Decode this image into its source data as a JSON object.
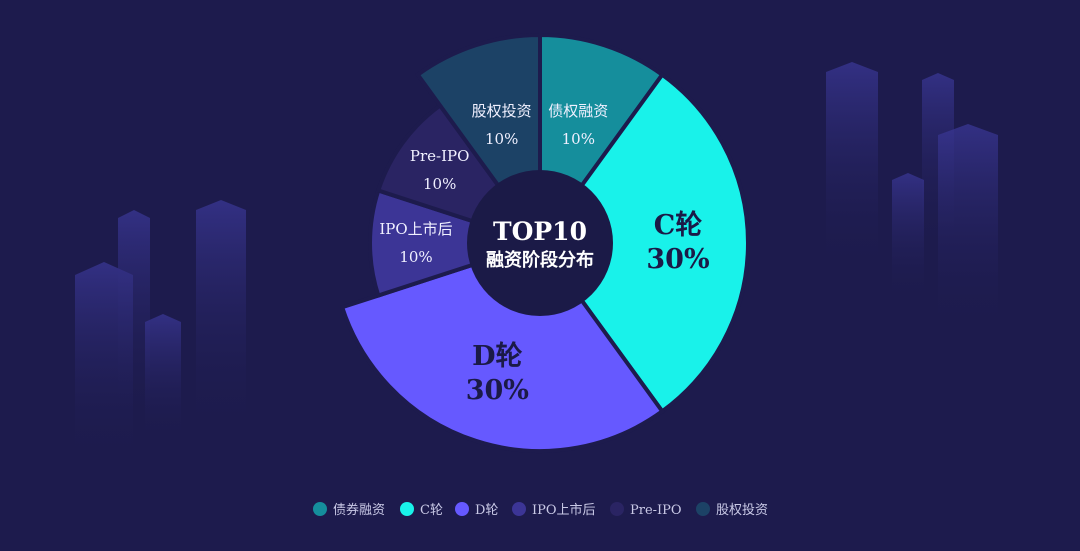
{
  "chart_data": {
    "type": "pie",
    "title_lines": [
      "TOP10",
      "融资阶段分布"
    ],
    "slices": [
      {
        "name": "债权融资",
        "label": "债权融资",
        "value": 10,
        "value_label": "10%",
        "color": "#158e9c"
      },
      {
        "name": "C轮",
        "label": "C轮",
        "value": 30,
        "value_label": "30%",
        "color": "#19f2ea"
      },
      {
        "name": "D轮",
        "label": "D轮",
        "value": 30,
        "value_label": "30%",
        "color": "#6659ff"
      },
      {
        "name": "IPO上市后",
        "label": "IPO上市后",
        "value": 10,
        "value_label": "10%",
        "color": "#3c3596"
      },
      {
        "name": "Pre-IPO",
        "label": "Pre-IPO",
        "value": 10,
        "value_label": "10%",
        "color": "#2a2463"
      },
      {
        "name": "股权投资",
        "label": "股权投资",
        "value": 10,
        "value_label": "10%",
        "color": "#1c4266"
      }
    ],
    "legend": [
      "债券融资",
      "C轮",
      "D轮",
      "IPO上市后",
      "Pre-IPO",
      "股权投资"
    ],
    "legend_position": "bottom"
  }
}
